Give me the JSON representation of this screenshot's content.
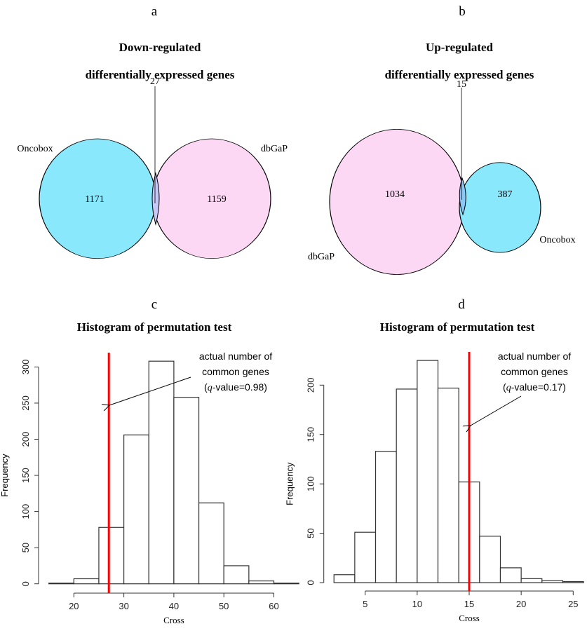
{
  "venn": [
    {
      "panel": "a",
      "title_line1": "Down-regulated",
      "title_line2": "differentially expressed genes",
      "sets": [
        {
          "name": "Oncobox",
          "only": "1171",
          "color": "#8ae8fc"
        },
        {
          "name": "dbGaP",
          "only": "1159",
          "color": "#fcd8f4"
        }
      ],
      "intersection": "27",
      "overlap_color": "#c8c8f8"
    },
    {
      "panel": "b",
      "title_line1": "Up-regulated",
      "title_line2": "differentially expressed genes",
      "sets": [
        {
          "name": "dbGaP",
          "only": "1034",
          "color": "#fcd8f4"
        },
        {
          "name": "Oncobox",
          "only": "387",
          "color": "#8ae8fc"
        }
      ],
      "intersection": "15",
      "overlap_color": "#8ac8f8"
    }
  ],
  "chart_data": [
    {
      "type": "bar",
      "panel": "c",
      "title": "Histogram of permutation test",
      "xlabel": "Cross",
      "ylabel": "Frequency",
      "bin_edges": [
        15,
        20,
        25,
        30,
        35,
        40,
        45,
        50,
        55,
        60,
        65
      ],
      "values": [
        1,
        7,
        78,
        206,
        308,
        258,
        112,
        25,
        4,
        1
      ],
      "xticks": [
        "20",
        "30",
        "40",
        "50",
        "60"
      ],
      "yticks": [
        "0",
        "50",
        "100",
        "150",
        "200",
        "250",
        "300"
      ],
      "xlim": [
        15,
        65
      ],
      "ylim": [
        0,
        300
      ],
      "grid": false,
      "marker_line": {
        "x": 27,
        "color": "#ff0000"
      },
      "annotation": {
        "line1": "actual number of",
        "line2": "common genes",
        "q": "q",
        "line3": "-value=0.98)",
        "open": "("
      }
    },
    {
      "type": "bar",
      "panel": "d",
      "title": "Histogram of permutation test",
      "xlabel": "Cross",
      "ylabel": "Frequency",
      "bin_edges": [
        2,
        4,
        6,
        8,
        10,
        12,
        14,
        16,
        18,
        20,
        22,
        24,
        26
      ],
      "values": [
        8,
        51,
        133,
        196,
        225,
        197,
        102,
        47,
        15,
        4,
        2,
        1
      ],
      "xticks": [
        "5",
        "10",
        "15",
        "20",
        "25"
      ],
      "yticks": [
        "0",
        "50",
        "100",
        "150",
        "200"
      ],
      "xlim": [
        2,
        26
      ],
      "ylim": [
        0,
        225
      ],
      "grid": false,
      "marker_line": {
        "x": 15,
        "color": "#ff0000"
      },
      "annotation": {
        "line1": "actual number of",
        "line2": "common genes",
        "q": "q",
        "line3": "-value=0.17)",
        "open": "("
      }
    }
  ]
}
